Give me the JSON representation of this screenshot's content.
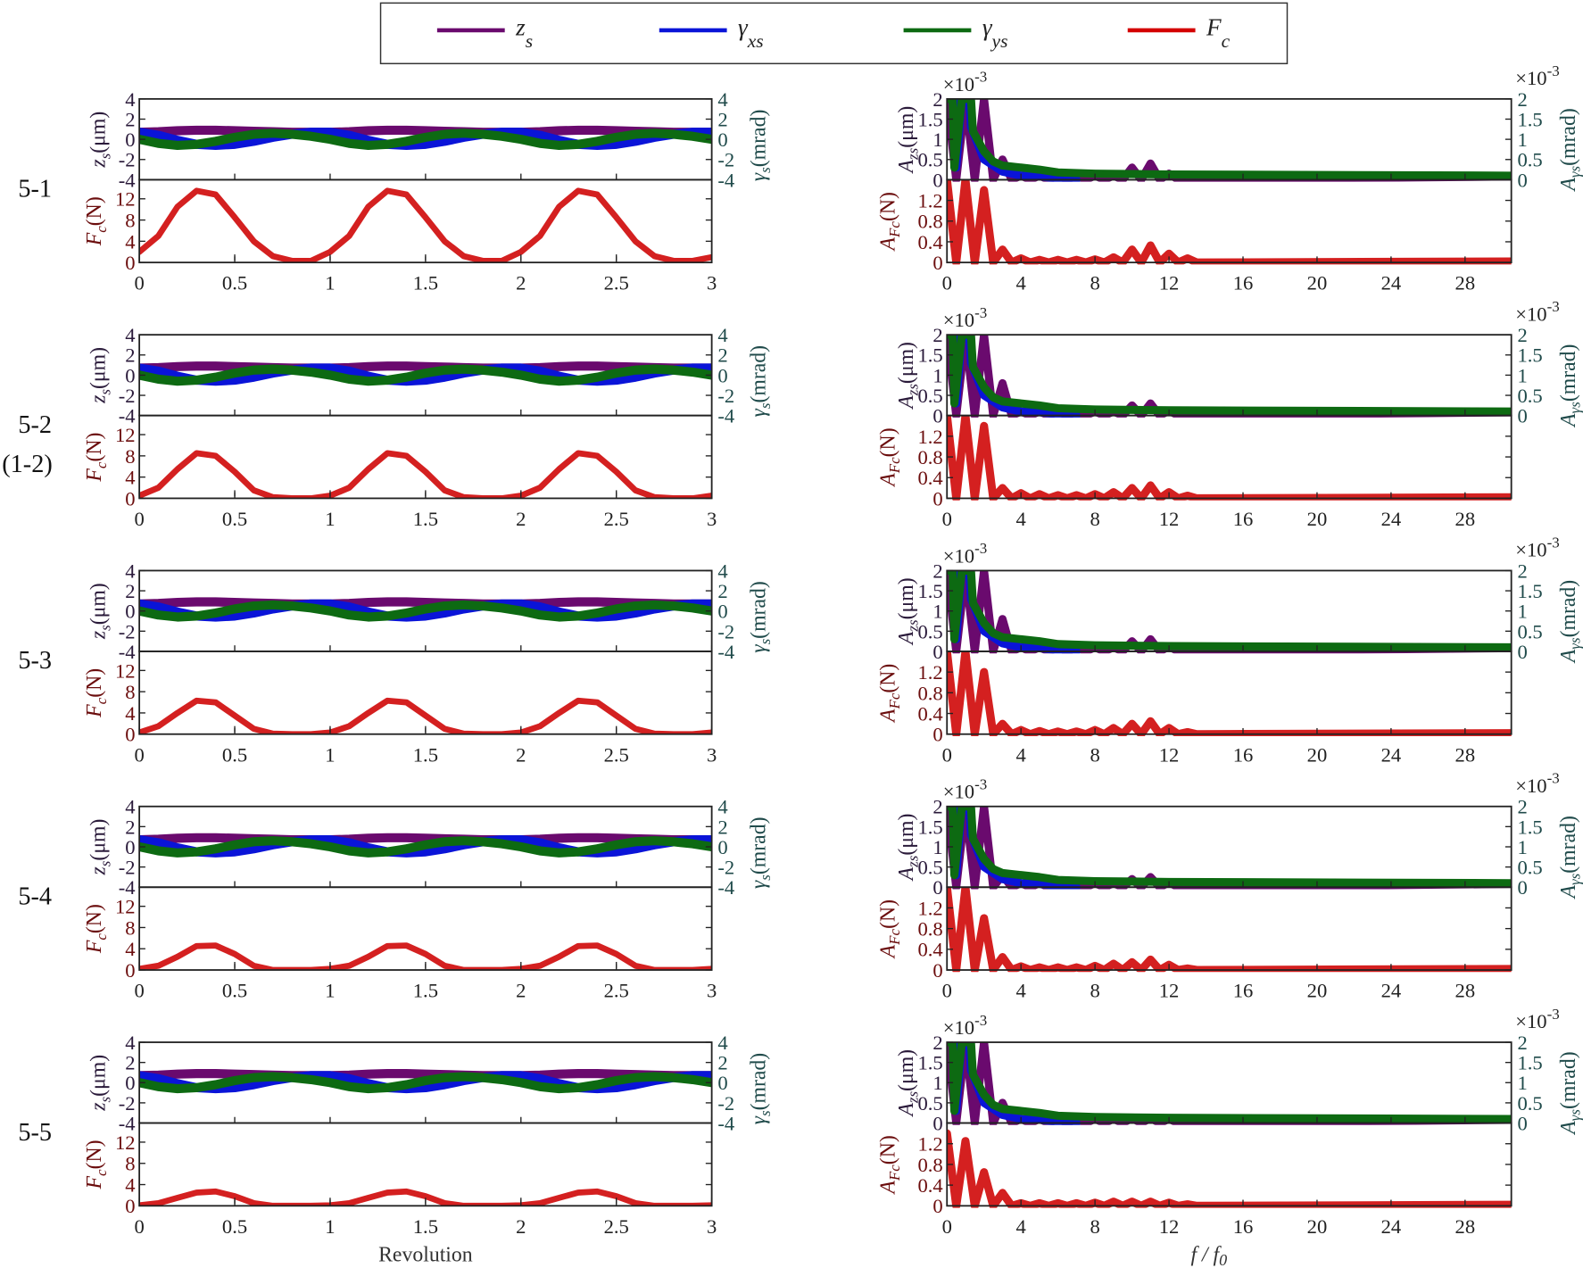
{
  "legend": [
    {
      "sym": "z",
      "sub": "s",
      "color": "#6a0a6e"
    },
    {
      "sym": "γ",
      "sub": "xs",
      "color": "#0a14d8"
    },
    {
      "sym": "γ",
      "sub": "ys",
      "color": "#0d6a12"
    },
    {
      "sym": "F",
      "sub": "c",
      "color": "#d40000"
    }
  ],
  "rows": [
    {
      "label": "5-1",
      "sublabel": ""
    },
    {
      "label": "5-2",
      "sublabel": "(1-2)"
    },
    {
      "label": "5-3",
      "sublabel": ""
    },
    {
      "label": "5-4",
      "sublabel": ""
    },
    {
      "label": "5-5",
      "sublabel": ""
    }
  ],
  "colors": {
    "z_s": "#6a0a6e",
    "gamma_xs": "#0a14d8",
    "gamma_ys": "#0d6a12",
    "F_c": "#d42020",
    "left_axis_text": "#2a1a3a",
    "right_axis_text": "#1f4a4a",
    "force_axis_text": "#6b0d0d"
  },
  "chart_data": {
    "type": "line",
    "time_domain": {
      "xlabel": "Revolution",
      "xlim": [
        0,
        3
      ],
      "xticks": [
        "0",
        "0.5",
        "1",
        "1.5",
        "2",
        "2.5",
        "3"
      ],
      "top_ylabel": {
        "sym": "z",
        "sub": "s",
        "unit": "(μm)"
      },
      "right_ylabel": {
        "sym": "γ",
        "sub": "s",
        "unit": "(mrad)"
      },
      "bottom_ylabel": {
        "sym": "F",
        "sub": "c",
        "unit": "(N)"
      },
      "top_ylim": [
        -4,
        4
      ],
      "top_yticks": [
        "4",
        "2",
        "0",
        "-2",
        "-4"
      ],
      "bottom_ylim": [
        0,
        15.6
      ],
      "bottom_yticks": [
        "0",
        "4",
        "8",
        "12"
      ],
      "x": [
        0,
        0.1,
        0.2,
        0.3,
        0.4,
        0.5,
        0.6,
        0.7,
        0.8,
        0.9,
        1,
        1.1,
        1.2,
        1.3,
        1.4,
        1.5,
        1.6,
        1.7,
        1.8,
        1.9,
        2,
        2.1,
        2.2,
        2.3,
        2.4,
        2.5,
        2.6,
        2.7,
        2.8,
        2.9,
        3
      ],
      "z_s": [
        0.7,
        0.75,
        0.85,
        0.9,
        0.9,
        0.85,
        0.8,
        0.75,
        0.7,
        0.7,
        0.7,
        0.75,
        0.85,
        0.9,
        0.9,
        0.85,
        0.8,
        0.75,
        0.7,
        0.7,
        0.7,
        0.75,
        0.85,
        0.9,
        0.9,
        0.85,
        0.8,
        0.75,
        0.7,
        0.7,
        0.7
      ],
      "gamma_xs": [
        0.7,
        0.4,
        -0.1,
        -0.5,
        -0.6,
        -0.5,
        -0.2,
        0.2,
        0.5,
        0.7,
        0.7,
        0.4,
        -0.1,
        -0.5,
        -0.6,
        -0.5,
        -0.2,
        0.2,
        0.5,
        0.7,
        0.7,
        0.4,
        -0.1,
        -0.5,
        -0.6,
        -0.5,
        -0.2,
        0.2,
        0.5,
        0.7,
        0.7
      ],
      "gamma_ys": [
        0,
        -0.4,
        -0.6,
        -0.5,
        -0.2,
        0.2,
        0.5,
        0.6,
        0.5,
        0.3,
        0,
        -0.4,
        -0.6,
        -0.5,
        -0.2,
        0.2,
        0.5,
        0.6,
        0.5,
        0.3,
        0,
        -0.4,
        -0.6,
        -0.5,
        -0.2,
        0.2,
        0.5,
        0.6,
        0.5,
        0.3,
        0
      ],
      "F_c": [
        [
          2,
          5,
          10.5,
          13.5,
          12.8,
          8.5,
          4,
          1.2,
          0.3,
          0.3,
          2,
          5,
          10.5,
          13.5,
          12.8,
          8.5,
          4,
          1.2,
          0.3,
          0.3,
          2,
          5,
          10.5,
          13.5,
          12.8,
          8.5,
          4,
          1.2,
          0.3,
          0.3,
          1
        ],
        [
          0.5,
          2,
          5.5,
          8.5,
          8,
          5,
          1.5,
          0.2,
          0,
          0,
          0.5,
          2,
          5.5,
          8.5,
          8,
          5,
          1.5,
          0.2,
          0,
          0,
          0.5,
          2,
          5.5,
          8.5,
          8,
          5,
          1.5,
          0.2,
          0,
          0,
          0.5
        ],
        [
          0.3,
          1.5,
          4,
          6.3,
          6,
          3.5,
          1,
          0.1,
          0,
          0,
          0.3,
          1.5,
          4,
          6.3,
          6,
          3.5,
          1,
          0.1,
          0,
          0,
          0.3,
          1.5,
          4,
          6.3,
          6,
          3.5,
          1,
          0.1,
          0,
          0,
          0.3
        ],
        [
          0.2,
          0.8,
          2.5,
          4.5,
          4.6,
          3,
          0.8,
          0,
          0,
          0,
          0.2,
          0.8,
          2.5,
          4.5,
          4.6,
          3,
          0.8,
          0,
          0,
          0,
          0.2,
          0.8,
          2.5,
          4.5,
          4.6,
          3,
          0.8,
          0,
          0,
          0,
          0.2
        ],
        [
          0.1,
          0.5,
          1.5,
          2.5,
          2.7,
          1.8,
          0.5,
          0,
          0,
          0,
          0.1,
          0.5,
          1.5,
          2.5,
          2.7,
          1.8,
          0.5,
          0,
          0,
          0,
          0.1,
          0.5,
          1.5,
          2.5,
          2.7,
          1.8,
          0.5,
          0,
          0,
          0,
          0.1
        ]
      ]
    },
    "frequency_domain": {
      "xlabel": {
        "sym": "f / f",
        "sub": "0"
      },
      "xlim": [
        0,
        30.5
      ],
      "xticks": [
        "0",
        "4",
        "8",
        "12",
        "16",
        "20",
        "24",
        "28"
      ],
      "top_ylabel": {
        "sym": "A",
        "sub": "zs",
        "unit": "(μm)"
      },
      "right_ylabel": {
        "sym": "A",
        "sub": "γs",
        "unit": "(mrad)"
      },
      "bottom_ylabel": {
        "sym": "A",
        "sub": "Fc",
        "unit": "(N)"
      },
      "multiplier": {
        "base": "×10",
        "exp": "-3"
      },
      "top_ylim": [
        0,
        2
      ],
      "top_yticks": [
        "0",
        "0.5",
        "1",
        "1.5",
        "2"
      ],
      "bottom_ylim": [
        0,
        1.6
      ],
      "bottom_yticks": [
        "0",
        "0.4",
        "0.8",
        "1.2"
      ],
      "gamma_xs": [
        [
          0,
          2
        ],
        [
          0.4,
          2
        ],
        [
          0.5,
          0.3
        ],
        [
          0.8,
          2
        ],
        [
          1.2,
          2
        ],
        [
          1.3,
          1.3
        ],
        [
          2,
          0.5
        ],
        [
          3,
          0.2
        ],
        [
          4,
          0.1
        ],
        [
          5,
          0.08
        ],
        [
          6,
          0.03
        ],
        [
          7,
          0
        ]
      ],
      "gamma_ys": [
        [
          0,
          2
        ],
        [
          0.3,
          2
        ],
        [
          0.4,
          0.3
        ],
        [
          0.8,
          2
        ],
        [
          1.3,
          2
        ],
        [
          1.4,
          1.2
        ],
        [
          2,
          0.7
        ],
        [
          2.5,
          0.45
        ],
        [
          3,
          0.35
        ],
        [
          4,
          0.3
        ],
        [
          5,
          0.25
        ],
        [
          6,
          0.18
        ],
        [
          8,
          0.15
        ],
        [
          12,
          0.13
        ],
        [
          30.5,
          0.1
        ]
      ],
      "z_s_harmonics": [
        [
          2,
          2,
          2,
          0.5,
          0.1,
          0.1,
          0.1,
          0.1,
          0.1,
          0.1,
          0.3,
          0.4,
          0.15
        ],
        [
          2,
          2,
          2,
          0.8,
          0.1,
          0.1,
          0.1,
          0.1,
          0.1,
          0.1,
          0.25,
          0.3,
          0.12
        ],
        [
          2,
          2,
          2,
          0.8,
          0.1,
          0.1,
          0.1,
          0.1,
          0.1,
          0.1,
          0.25,
          0.3,
          0.12
        ],
        [
          2,
          2,
          2,
          0.3,
          0.1,
          0.1,
          0.1,
          0.1,
          0.1,
          0.1,
          0.2,
          0.25,
          0.12
        ],
        [
          2,
          2,
          2,
          0.5,
          0.1,
          0.1,
          0.1,
          0.1,
          0.1,
          0.1,
          0.12,
          0.12,
          0.1
        ]
      ],
      "F_c_harmonics": [
        [
          1.6,
          1.6,
          1.4,
          0.25,
          0.08,
          0.05,
          0.05,
          0.05,
          0.06,
          0.1,
          0.25,
          0.33,
          0.17,
          0.08
        ],
        [
          1.6,
          1.6,
          1.4,
          0.2,
          0.1,
          0.08,
          0.06,
          0.06,
          0.08,
          0.12,
          0.2,
          0.25,
          0.12,
          0.05
        ],
        [
          1.6,
          1.6,
          1.2,
          0.2,
          0.08,
          0.06,
          0.05,
          0.05,
          0.08,
          0.12,
          0.2,
          0.25,
          0.12,
          0.04
        ],
        [
          1.6,
          1.6,
          1.0,
          0.25,
          0.07,
          0.05,
          0.05,
          0.05,
          0.08,
          0.12,
          0.15,
          0.2,
          0.1,
          0.03
        ],
        [
          1.4,
          1.25,
          0.65,
          0.25,
          0.05,
          0.05,
          0.05,
          0.05,
          0.06,
          0.08,
          0.08,
          0.08,
          0.06,
          0.03
        ]
      ]
    }
  }
}
